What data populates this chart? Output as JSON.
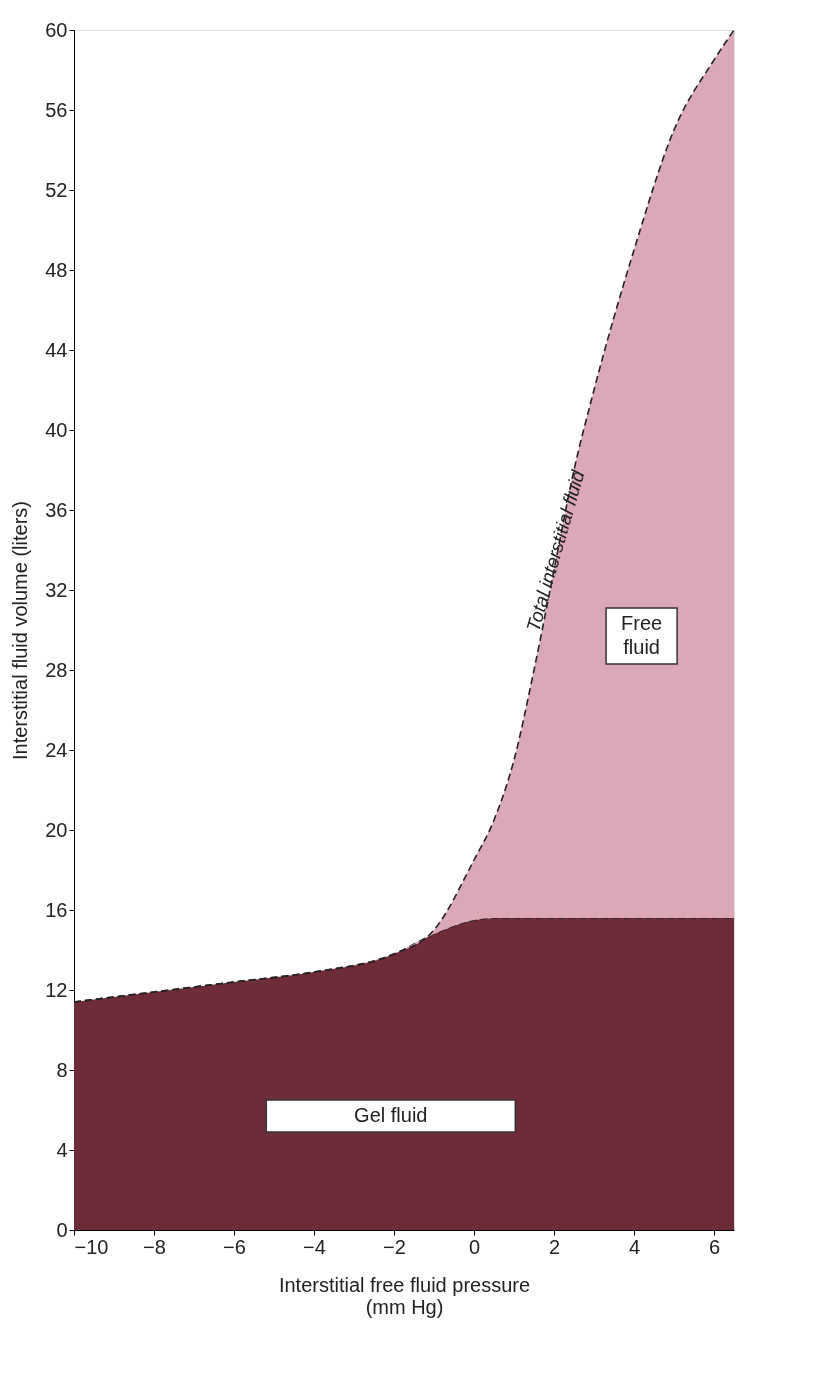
{
  "chart_data": {
    "type": "area",
    "stacked": true,
    "line_style": "dashed",
    "xlabel": "Interstitial free fluid pressure\n(mm Hg)",
    "ylabel": "Interstitial fluid volume (liters)",
    "x": [
      -10,
      -8,
      -6,
      -4,
      -2,
      -1,
      0,
      0.5,
      1,
      1.5,
      2,
      2.5,
      3,
      4,
      5,
      6,
      6.5
    ],
    "series": [
      {
        "name": "Gel fluid",
        "color": "#6e2c38",
        "values": [
          11.4,
          11.9,
          12.4,
          12.9,
          13.8,
          14.8,
          15.5,
          15.6,
          15.6,
          15.6,
          15.6,
          15.6,
          15.6,
          15.6,
          15.6,
          15.6,
          15.6
        ]
      },
      {
        "name": "Free fluid",
        "color": "#dba8b8",
        "values": [
          0,
          0,
          0,
          0,
          0,
          0.2,
          3,
          4.9,
          7.9,
          12.4,
          17.4,
          22.4,
          26.4,
          33.4,
          39.4,
          42.9,
          44.4
        ]
      }
    ],
    "annotations": [
      {
        "text": "Total interstitial fluid",
        "x": 2.2,
        "y": 35
      }
    ],
    "xlim": [
      -10,
      6.5
    ],
    "ylim": [
      0,
      60
    ],
    "xticks": [
      {
        "value": -10,
        "label": "−10"
      },
      {
        "value": -8,
        "label": "−8"
      },
      {
        "value": -6,
        "label": "−6"
      },
      {
        "value": -4,
        "label": "−4"
      },
      {
        "value": -2,
        "label": "−2"
      },
      0,
      2,
      4,
      6
    ],
    "yticks": [
      0,
      4,
      8,
      12,
      16,
      20,
      24,
      28,
      32,
      36,
      40,
      44,
      48,
      52,
      56,
      60
    ],
    "grid": false
  }
}
